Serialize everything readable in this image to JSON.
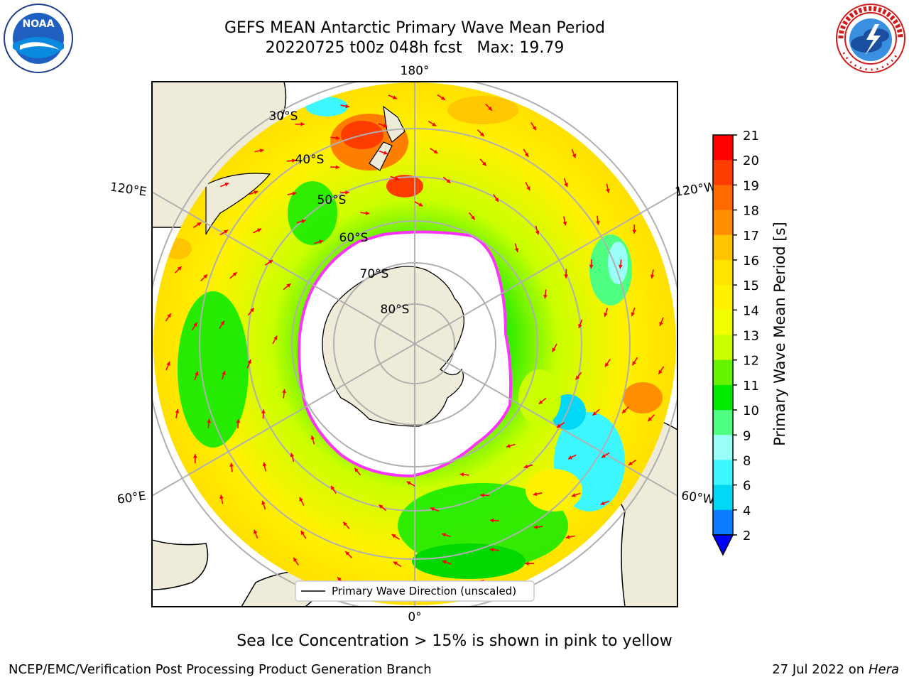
{
  "header": {
    "title_line1": "GEFS MEAN Antarctic Primary Wave Mean Period",
    "title_line2": "20220725 t00z 048h fcst   Max: 19.79"
  },
  "logos": {
    "left_icon": "noaa-logo-icon",
    "left_text": "NOAA",
    "right_icon": "nws-logo-icon",
    "right_text": "NATIONAL WEATHER SERVICE"
  },
  "map": {
    "projection": "south-polar-stereographic",
    "longitude_labels": [
      "180°",
      "120°E",
      "120°W",
      "60°E",
      "60°W",
      "0°"
    ],
    "latitude_labels": [
      "30°S",
      "40°S",
      "50°S",
      "60°S",
      "70°S",
      "80°S"
    ],
    "legend_label": "Primary Wave Direction (unscaled)"
  },
  "colorbar": {
    "label": "Primary Wave Mean Period [s]",
    "ticks": [
      "2",
      "4",
      "6",
      "8",
      "9",
      "10",
      "11",
      "12",
      "13",
      "14",
      "15",
      "16",
      "17",
      "18",
      "19",
      "20",
      "21"
    ],
    "colors": [
      "#0a7cff",
      "#00d8f5",
      "#3cf7ff",
      "#9afff6",
      "#4fff82",
      "#00ea00",
      "#66f300",
      "#c9ff00",
      "#f2ff00",
      "#fff200",
      "#ffe400",
      "#ffc400",
      "#ff8e00",
      "#ff6a00",
      "#ff3c00",
      "#ff0000"
    ],
    "under_color": "#0000ff"
  },
  "footer": {
    "caption": "Sea Ice Concentration > 15% is shown in pink to yellow",
    "credit": "NCEP/EMC/Verification Post Processing Product Generation Branch",
    "date": "27 Jul 2022 on",
    "host": "Hera"
  },
  "colors": {
    "land": "#efebd9",
    "ice_edge": "#ff33ff",
    "grid": "#b0b0b0",
    "arrow": "#ff0000"
  }
}
